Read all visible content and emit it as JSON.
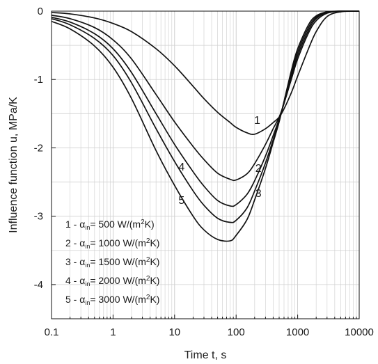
{
  "chart_data": {
    "type": "line",
    "xlabel": "Time t, s",
    "ylabel": "Influence function u, MPa/K",
    "xscale": "log",
    "xlim": [
      0.1,
      10000
    ],
    "ylim": [
      -4.5,
      0
    ],
    "x_ticks": [
      0.1,
      1,
      10,
      100,
      1000,
      10000
    ],
    "x_tick_labels": [
      "0.1",
      "1",
      "10",
      "100",
      "1000",
      "10000"
    ],
    "y_ticks": [
      0,
      -1,
      -2,
      -3,
      -4
    ],
    "y_tick_labels": [
      "0",
      "-1",
      "-2",
      "-3",
      "-4"
    ],
    "grid": true,
    "x": [
      0.1,
      0.2,
      0.5,
      1,
      2,
      5,
      10,
      20,
      30,
      50,
      80,
      100,
      150,
      200,
      300,
      400,
      500,
      600,
      800,
      1000,
      1500,
      2000,
      3000,
      5000,
      10000
    ],
    "series": [
      {
        "label": "1",
        "values": [
          -0.02,
          -0.04,
          -0.1,
          -0.18,
          -0.3,
          -0.55,
          -0.8,
          -1.1,
          -1.28,
          -1.48,
          -1.63,
          -1.7,
          -1.78,
          -1.8,
          -1.72,
          -1.63,
          -1.55,
          -1.43,
          -1.18,
          -0.95,
          -0.55,
          -0.3,
          -0.08,
          -0.01,
          0
        ],
        "color": "#111111"
      },
      {
        "label": "2",
        "values": [
          -0.06,
          -0.11,
          -0.24,
          -0.42,
          -0.7,
          -1.22,
          -1.62,
          -1.98,
          -2.17,
          -2.37,
          -2.46,
          -2.47,
          -2.38,
          -2.23,
          -1.95,
          -1.72,
          -1.55,
          -1.35,
          -0.98,
          -0.7,
          -0.32,
          -0.14,
          -0.03,
          0,
          0
        ],
        "color": "#111111"
      },
      {
        "label": "3",
        "values": [
          -0.09,
          -0.16,
          -0.33,
          -0.55,
          -0.9,
          -1.5,
          -1.95,
          -2.35,
          -2.56,
          -2.77,
          -2.85,
          -2.83,
          -2.68,
          -2.48,
          -2.12,
          -1.82,
          -1.58,
          -1.35,
          -0.95,
          -0.65,
          -0.28,
          -0.11,
          -0.02,
          0,
          0
        ],
        "color": "#111111"
      },
      {
        "label": "4",
        "values": [
          -0.11,
          -0.2,
          -0.4,
          -0.65,
          -1.05,
          -1.72,
          -2.2,
          -2.63,
          -2.84,
          -3.03,
          -3.09,
          -3.06,
          -2.88,
          -2.63,
          -2.22,
          -1.88,
          -1.6,
          -1.33,
          -0.9,
          -0.6,
          -0.24,
          -0.09,
          -0.02,
          0,
          0
        ],
        "color": "#111111"
      },
      {
        "label": "5",
        "values": [
          -0.15,
          -0.26,
          -0.51,
          -0.82,
          -1.28,
          -2.04,
          -2.55,
          -3.0,
          -3.2,
          -3.34,
          -3.36,
          -3.28,
          -3.05,
          -2.76,
          -2.3,
          -1.92,
          -1.62,
          -1.32,
          -0.85,
          -0.55,
          -0.2,
          -0.07,
          -0.01,
          0,
          0
        ],
        "color": "#111111"
      }
    ],
    "curve_labels": [
      {
        "text": "1",
        "x": 220,
        "y": -1.65
      },
      {
        "text": "2",
        "x": 230,
        "y": -2.35
      },
      {
        "text": "3",
        "x": 230,
        "y": -2.72
      },
      {
        "text": "4",
        "x": 13,
        "y": -2.33
      },
      {
        "text": "5",
        "x": 13,
        "y": -2.82
      }
    ],
    "legend": {
      "placement": "bottom-left",
      "entries": [
        {
          "num": "1 -",
          "alpha": "α",
          "sub": "in",
          "text": "= 500 W/(m",
          "sup": "2",
          "tail": "K)"
        },
        {
          "num": "2 -",
          "alpha": "α",
          "sub": "in",
          "text": "= 1000 W/(m",
          "sup": "2",
          "tail": "K)"
        },
        {
          "num": "3 -",
          "alpha": "α",
          "sub": "in",
          "text": "= 1500 W/(m",
          "sup": "2",
          "tail": "K)"
        },
        {
          "num": "4 -",
          "alpha": "α",
          "sub": "in",
          "text": "= 2000 W/(m",
          "sup": "2",
          "tail": "K)"
        },
        {
          "num": "5 -",
          "alpha": "α",
          "sub": "in",
          "text": "= 3000 W/(m",
          "sup": "2",
          "tail": "K)"
        }
      ]
    }
  }
}
